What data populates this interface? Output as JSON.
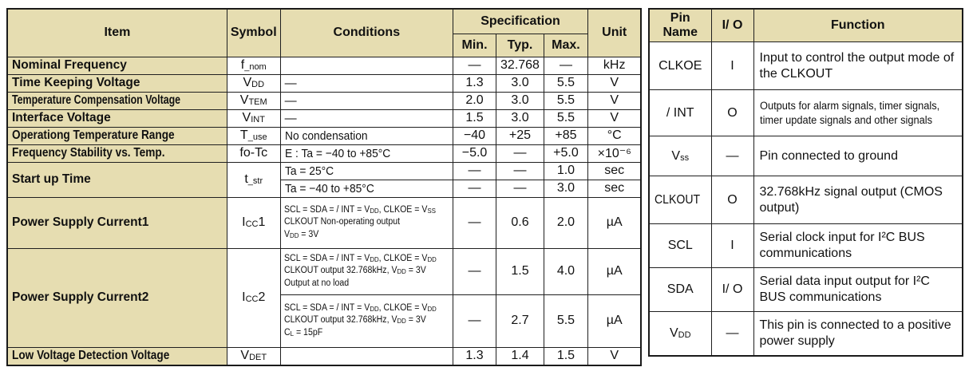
{
  "colors": {
    "header_bg": "#e6ddb1",
    "border": "#1a1a1a",
    "text": "#111111"
  },
  "spec_table": {
    "headers": {
      "item": "Item",
      "symbol": "Symbol",
      "conditions": "Conditions",
      "specification": "Specification",
      "min": "Min.",
      "typ": "Typ.",
      "max": "Max.",
      "unit": "Unit"
    },
    "rows": [
      {
        "item": "Nominal Frequency",
        "sym_base": "f",
        "sym_sub": "_nom",
        "sym_suffix": "",
        "cond": "",
        "min": "—",
        "typ": "32.768",
        "max": "—",
        "unit": "kHz"
      },
      {
        "item": "Time Keeping Voltage",
        "sym_base": "V",
        "sym_sub": "DD",
        "sym_suffix": "",
        "cond": "—",
        "min": "1.3",
        "typ": "3.0",
        "max": "5.5",
        "unit": "V"
      },
      {
        "item": "Temperature Compensation Voltage",
        "sym_base": "V",
        "sym_sub": "TEM",
        "sym_suffix": "",
        "cond": "—",
        "min": "2.0",
        "typ": "3.0",
        "max": "5.5",
        "unit": "V"
      },
      {
        "item": "Interface Voltage",
        "sym_base": "V",
        "sym_sub": "INT",
        "sym_suffix": "",
        "cond": "—",
        "min": "1.5",
        "typ": "3.0",
        "max": "5.5",
        "unit": "V"
      },
      {
        "item": "Operationg Temperature Range",
        "sym_base": "T",
        "sym_sub": "_use",
        "sym_suffix": "",
        "cond": "No condensation",
        "min": "−40",
        "typ": "+25",
        "max": "+85",
        "unit": "°C"
      },
      {
        "item": "Frequency Stability vs. Temp.",
        "sym_base": "fo-Tc",
        "sym_sub": "",
        "sym_suffix": "",
        "cond": "E : Ta = −40 to +85°C",
        "min": "−5.0",
        "typ": "—",
        "max": "+5.0",
        "unit": "×10⁻⁶"
      },
      {
        "item": "Start up Time",
        "sym_base": "t",
        "sym_sub": "_str",
        "sym_suffix": "",
        "cond": "Ta = 25°C",
        "min": "—",
        "typ": "—",
        "max": "1.0",
        "unit": "sec"
      },
      {
        "cond": "Ta = −40 to +85°C",
        "min": "—",
        "typ": "—",
        "max": "3.0",
        "unit": "sec"
      },
      {
        "item": "Power Supply Current1",
        "sym_base": "I",
        "sym_sub": "CC",
        "sym_suffix": "1",
        "cond_rich": [
          [
            {
              "t": "SCL = SDA = / INT = V"
            },
            {
              "s": "DD"
            },
            {
              "t": ", CLKOE = V"
            },
            {
              "s": "SS"
            }
          ],
          [
            {
              "t": "CLKOUT Non-operating output"
            }
          ],
          [
            {
              "t": "V"
            },
            {
              "s": "DD"
            },
            {
              "t": " = 3V"
            }
          ]
        ],
        "min": "—",
        "typ": "0.6",
        "max": "2.0",
        "unit": "µA"
      },
      {
        "item": "Power Supply Current2",
        "sym_base": "I",
        "sym_sub": "CC",
        "sym_suffix": "2",
        "cond_rich": [
          [
            {
              "t": "SCL = SDA = / INT = V"
            },
            {
              "s": "DD"
            },
            {
              "t": ", CLKOE = V"
            },
            {
              "s": "DD"
            }
          ],
          [
            {
              "t": "CLKOUT output 32.768kHz, V"
            },
            {
              "s": "DD"
            },
            {
              "t": " = 3V"
            }
          ],
          [
            {
              "t": "Output at no load"
            }
          ]
        ],
        "min": "—",
        "typ": "1.5",
        "max": "4.0",
        "unit": "µA"
      },
      {
        "cond_rich": [
          [
            {
              "t": "SCL = SDA = / INT = V"
            },
            {
              "s": "DD"
            },
            {
              "t": ", CLKOE = V"
            },
            {
              "s": "DD"
            }
          ],
          [
            {
              "t": "CLKOUT output 32.768kHz, V"
            },
            {
              "s": "DD"
            },
            {
              "t": " = 3V"
            }
          ],
          [
            {
              "t": "C"
            },
            {
              "s": "L"
            },
            {
              "t": " = 15pF"
            }
          ]
        ],
        "min": "—",
        "typ": "2.7",
        "max": "5.5",
        "unit": "µA"
      },
      {
        "item": "Low Voltage Detection Voltage",
        "sym_base": "V",
        "sym_sub": "DET",
        "sym_suffix": "",
        "cond": "",
        "min": "1.3",
        "typ": "1.4",
        "max": "1.5",
        "unit": "V"
      }
    ]
  },
  "pin_table": {
    "headers": {
      "pin_name": "Pin Name",
      "io": "I/ O",
      "function": "Function"
    },
    "rows": [
      {
        "pin": "CLKOE",
        "io": "I",
        "func": "Input to control the output mode of the CLKOUT"
      },
      {
        "pin": "/ INT",
        "io": "O",
        "func": "Outputs for alarm signals, timer signals, timer update signals and other signals"
      },
      {
        "pin_base": "V",
        "pin_sub": "ss",
        "io": "—",
        "func": "Pin connected to ground"
      },
      {
        "pin": "CLKOUT",
        "io": "O",
        "func": "32.768kHz signal output (CMOS output)"
      },
      {
        "pin": "SCL",
        "io": "I",
        "func": "Serial clock input for I²C BUS communications"
      },
      {
        "pin": "SDA",
        "io": "I/ O",
        "func": "Serial data input output for I²C BUS communications"
      },
      {
        "pin_base": "V",
        "pin_sub": "DD",
        "io": "—",
        "func": "This pin is connected to a positive power supply"
      }
    ]
  }
}
